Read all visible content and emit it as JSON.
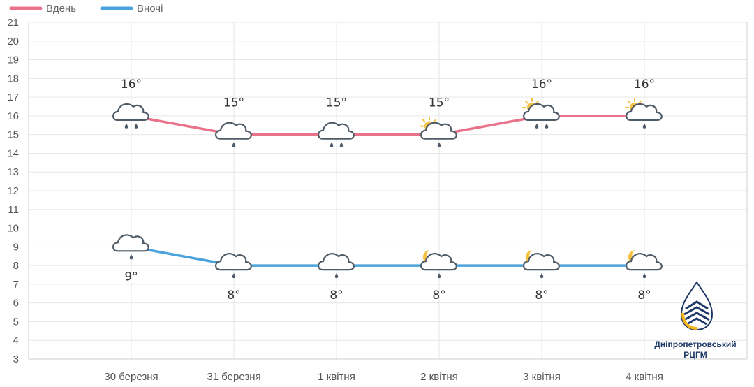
{
  "chart_data": {
    "type": "line",
    "categories": [
      "30 березня",
      "31 березня",
      "1 квітня",
      "2 квітня",
      "3 квітня",
      "4 квітня"
    ],
    "series": [
      {
        "name": "Вдень",
        "color": "#e8738a",
        "values": [
          16,
          15,
          15,
          15,
          16,
          16
        ],
        "labels": [
          "16°",
          "15°",
          "15°",
          "15°",
          "16°",
          "16°"
        ],
        "icons": [
          "cloud-rain-heavy-icon",
          "cloud-rain-icon",
          "cloud-rain-heavy-icon",
          "sun-cloud-rain-icon",
          "sun-cloud-rain-heavy-icon",
          "sun-cloud-rain-icon"
        ]
      },
      {
        "name": "Вночі",
        "color": "#4ba3de",
        "values": [
          9,
          8,
          8,
          8,
          8,
          8
        ],
        "labels": [
          "9°",
          "8°",
          "8°",
          "8°",
          "8°",
          "8°"
        ],
        "icons": [
          "cloud-rain-icon",
          "cloud-rain-icon",
          "cloud-rain-icon",
          "moon-cloud-rain-icon",
          "moon-cloud-rain-icon",
          "moon-cloud-rain-icon"
        ]
      }
    ],
    "ylim": [
      3,
      21
    ],
    "yticks": [
      3,
      4,
      5,
      6,
      7,
      8,
      9,
      10,
      11,
      12,
      13,
      14,
      15,
      16,
      17,
      18,
      19,
      20,
      21
    ],
    "grid": true,
    "legend": "top-left"
  },
  "logo": {
    "line1": "Дніпропетровський",
    "line2": "РЦГМ"
  }
}
